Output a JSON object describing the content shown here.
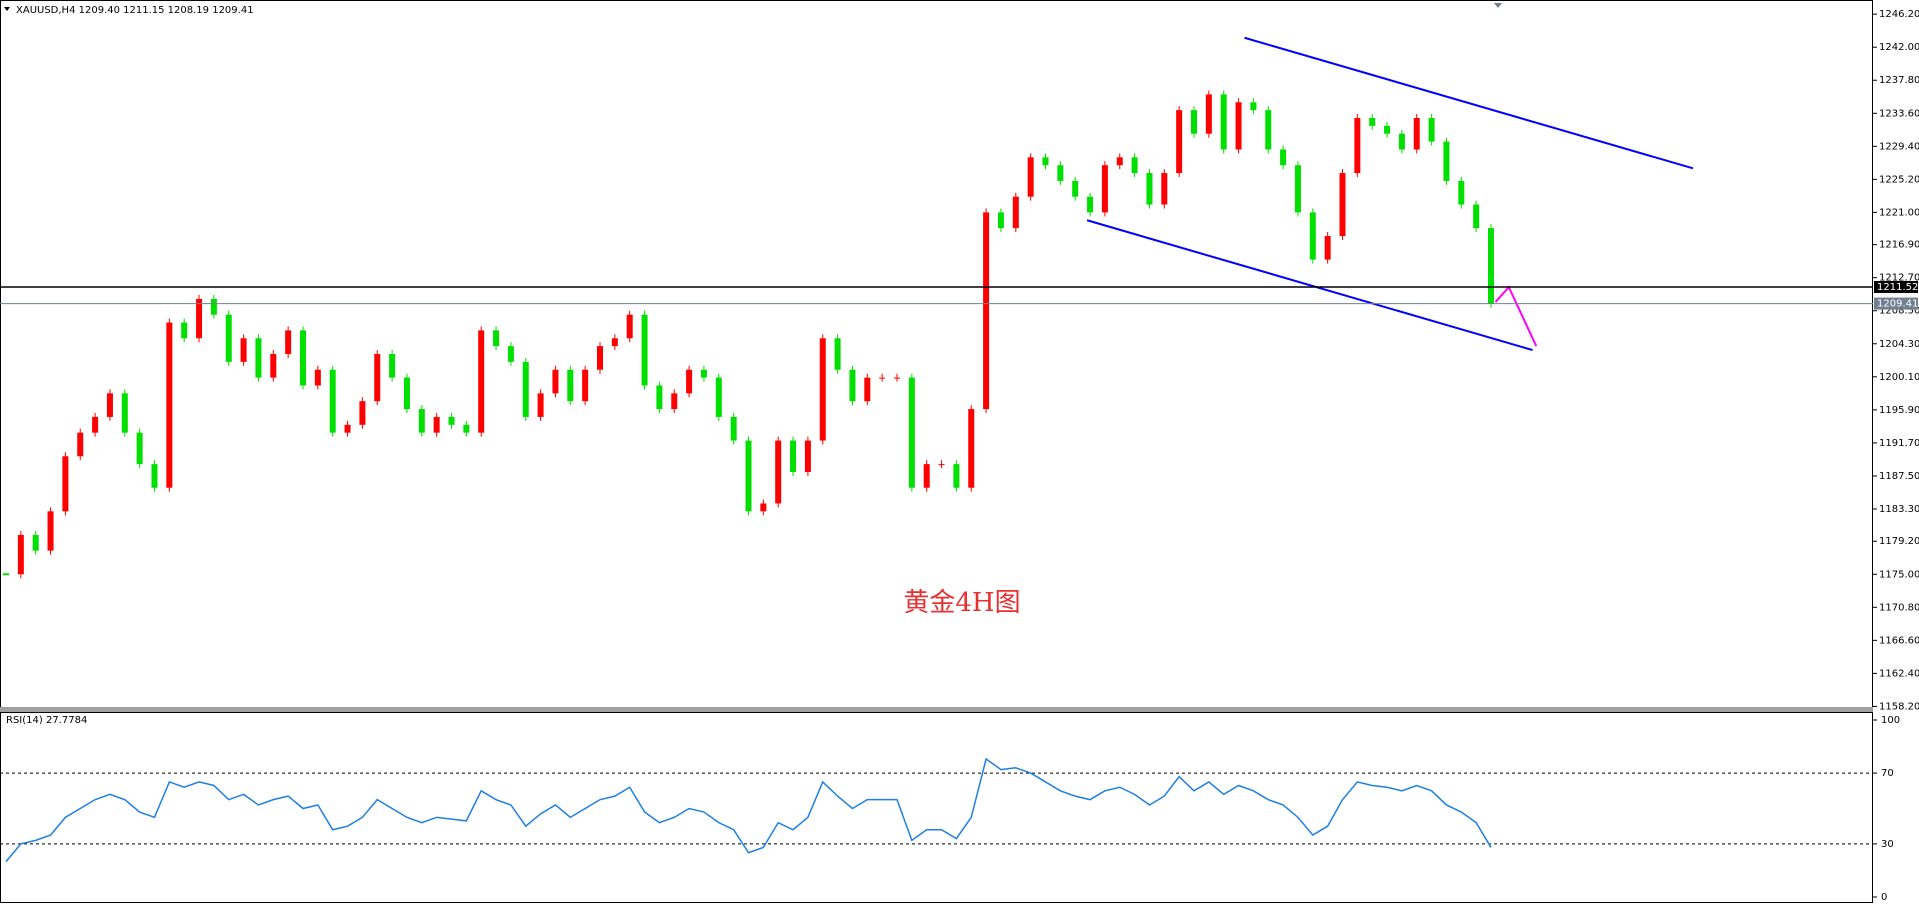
{
  "chart_data": [
    {
      "type": "candlestick",
      "title": "XAUUSD,H4  1209.40 1211.15 1208.19 1209.41",
      "close": [
        1175,
        1180,
        1178,
        1183,
        1190,
        1193,
        1195,
        1198,
        1193,
        1189,
        1186,
        1207,
        1205,
        1210,
        1208,
        1202,
        1205,
        1200,
        1203,
        1206,
        1199,
        1201,
        1193,
        1194,
        1197,
        1203,
        1200,
        1196,
        1193,
        1195,
        1194,
        1193,
        1206,
        1204,
        1202,
        1195,
        1198,
        1201,
        1197,
        1201,
        1204,
        1205,
        1208,
        1199,
        1196,
        1198,
        1201,
        1200,
        1195,
        1192,
        1183,
        1184,
        1192,
        1188,
        1192,
        1205,
        1201,
        1197,
        1200,
        1200,
        1200,
        1186,
        1189,
        1189,
        1186,
        1196,
        1221,
        1219,
        1223,
        1228,
        1227,
        1225,
        1223,
        1221,
        1227,
        1228,
        1226,
        1222,
        1226,
        1234,
        1231,
        1236,
        1229,
        1235,
        1234,
        1229,
        1227,
        1221,
        1215,
        1218,
        1226,
        1233,
        1232,
        1231,
        1229,
        1233,
        1230,
        1225,
        1222,
        1219,
        1209.41
      ],
      "up_color": "#ff0000",
      "down_color": "#00e000",
      "ylim": [
        1158.0,
        1248.0
      ],
      "yticks": [
        {
          "value": 1246.2,
          "label": "1246.20"
        },
        {
          "value": 1242,
          "label": "1242.00"
        },
        {
          "value": 1237.8,
          "label": "1237.80"
        },
        {
          "value": 1233.6,
          "label": "1233.60"
        },
        {
          "value": 1229.4,
          "label": "1229.40"
        },
        {
          "value": 1225.2,
          "label": "1225.20"
        },
        {
          "value": 1221,
          "label": "1221.00"
        },
        {
          "value": 1216.9,
          "label": "1216.90"
        },
        {
          "value": 1212.7,
          "label": "1212.70"
        },
        {
          "value": 1208.5,
          "label": "1208.50"
        },
        {
          "value": 1204.3,
          "label": "1204.30"
        },
        {
          "value": 1200.1,
          "label": "1200.10"
        },
        {
          "value": 1195.9,
          "label": "1195.90"
        },
        {
          "value": 1191.7,
          "label": "1191.70"
        },
        {
          "value": 1187.5,
          "label": "1187.50"
        },
        {
          "value": 1183.3,
          "label": "1183.30"
        },
        {
          "value": 1179.2,
          "label": "1179.20"
        },
        {
          "value": 1175,
          "label": "1175.00"
        },
        {
          "value": 1170.8,
          "label": "1170.80"
        },
        {
          "value": 1166.6,
          "label": "1166.60"
        },
        {
          "value": 1162.4,
          "label": "1162.40"
        },
        {
          "value": 1158.2,
          "label": "1158.20"
        }
      ],
      "lines": [
        {
          "color": "#0000ff",
          "x": [
            83.4,
            113.6
          ],
          "y": [
            1243.2,
            1226.6
          ]
        },
        {
          "color": "#0000ff",
          "x": [
            72.8,
            102.8
          ],
          "y": [
            1220.0,
            1203.5
          ]
        },
        {
          "color": "#ff00ff",
          "x": [
            100.3,
            101.2,
            103.05
          ],
          "y": [
            1209.6,
            1211.5,
            1204.0
          ]
        }
      ],
      "hlines": [
        {
          "value": 1211.52,
          "label": "1211.52",
          "color": "#000000"
        },
        {
          "value": 1209.41,
          "label": "1209.41",
          "color": "#708090"
        }
      ],
      "annotation": "黄金4H图"
    },
    {
      "type": "line",
      "title": "RSI(14) 27.7784",
      "values": [
        20,
        30,
        32,
        35,
        45,
        50,
        55,
        58,
        55,
        48,
        45,
        65,
        62,
        65,
        63,
        55,
        58,
        52,
        55,
        57,
        50,
        52,
        38,
        40,
        45,
        55,
        50,
        45,
        42,
        45,
        44,
        43,
        60,
        55,
        52,
        40,
        47,
        52,
        45,
        50,
        55,
        57,
        62,
        48,
        42,
        45,
        50,
        48,
        42,
        38,
        25,
        28,
        42,
        38,
        45,
        65,
        57,
        50,
        55,
        55,
        55,
        32,
        38,
        38,
        33,
        45,
        78,
        72,
        73,
        70,
        65,
        60,
        57,
        55,
        60,
        62,
        58,
        52,
        57,
        68,
        60,
        65,
        58,
        63,
        60,
        55,
        52,
        45,
        35,
        40,
        55,
        65,
        63,
        62,
        60,
        63,
        60,
        52,
        48,
        42,
        28
      ],
      "color": "#1e7fe6",
      "ylim": [
        0,
        100
      ],
      "yticks": [
        0,
        30,
        70,
        100
      ],
      "levels": [
        30,
        70
      ]
    }
  ]
}
